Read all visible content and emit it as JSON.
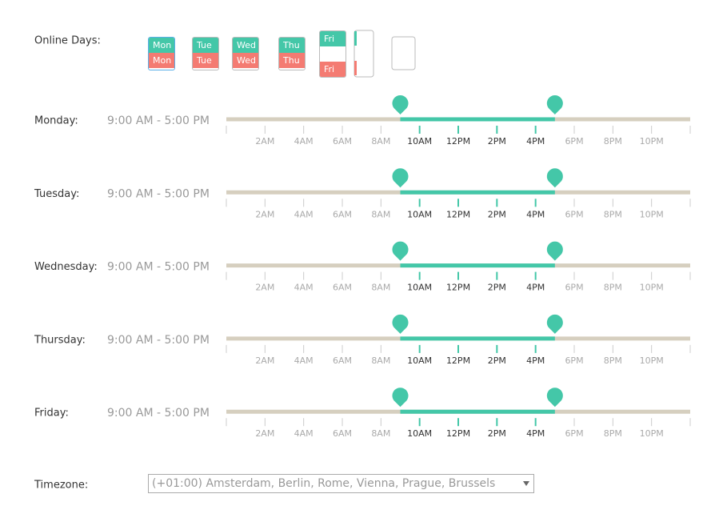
{
  "online_days": {
    "label": "Online Days:",
    "toggles": [
      {
        "top": "Mon",
        "bottom": "Mon"
      },
      {
        "top": "Tue",
        "bottom": "Tue"
      },
      {
        "top": "Wed",
        "bottom": "Wed"
      },
      {
        "top": "Thu",
        "bottom": "Thu"
      },
      {
        "top": "Fri",
        "bottom": "Fri"
      }
    ]
  },
  "timeline": {
    "min": 0,
    "max": 24,
    "ticks": [
      {
        "value": 0,
        "label": null
      },
      {
        "value": 2,
        "label": "2AM"
      },
      {
        "value": 4,
        "label": "4AM"
      },
      {
        "value": 6,
        "label": "6AM"
      },
      {
        "value": 8,
        "label": "8AM"
      },
      {
        "value": 10,
        "label": "10AM"
      },
      {
        "value": 12,
        "label": "12PM"
      },
      {
        "value": 14,
        "label": "2PM"
      },
      {
        "value": 16,
        "label": "4PM"
      },
      {
        "value": 18,
        "label": "6PM"
      },
      {
        "value": 20,
        "label": "8PM"
      },
      {
        "value": 22,
        "label": "10PM"
      },
      {
        "value": 24,
        "label": null
      }
    ]
  },
  "schedule": [
    {
      "day": "Monday:",
      "range": "9:00 AM - 5:00 PM",
      "start": 9,
      "end": 17
    },
    {
      "day": "Tuesday:",
      "range": "9:00 AM - 5:00 PM",
      "start": 9,
      "end": 17
    },
    {
      "day": "Wednesday:",
      "range": "9:00 AM - 5:00 PM",
      "start": 9,
      "end": 17
    },
    {
      "day": "Thursday:",
      "range": "9:00 AM - 5:00 PM",
      "start": 9,
      "end": 17
    },
    {
      "day": "Friday:",
      "range": "9:00 AM - 5:00 PM",
      "start": 9,
      "end": 17
    }
  ],
  "timezone": {
    "label": "Timezone:",
    "value": "(+01:00) Amsterdam, Berlin, Rome, Vienna, Prague, Brussels"
  }
}
